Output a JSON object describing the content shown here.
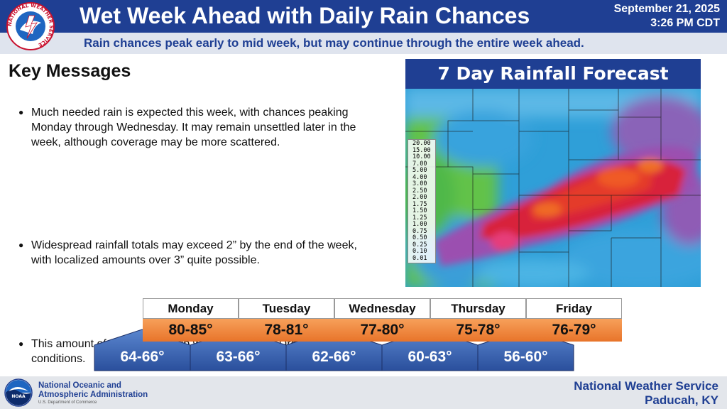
{
  "header": {
    "title": "Wet Week Ahead with Daily Rain Chances",
    "date": "September 21, 2025",
    "time": "3:26 PM CDT",
    "subtitle": "Rain chances peak early to mid week, but may continue through the entire week ahead.",
    "logo_text": "NATIONAL WEATHER SERVICE",
    "bg_color": "#1f3f93"
  },
  "key_messages": {
    "title": "Key Messages",
    "items": [
      "Much needed rain is expected this week, with chances peaking Monday through Wednesday. It may remain unsettled later in the week, although coverage may be more scattered.",
      "Widespread rainfall totals may exceed 2” by the end of the week, with localized amounts over 3” quite possible.",
      "This amount of rain should help with the ongoing Drought conditions."
    ]
  },
  "map": {
    "title": "7 Day Rainfall Forecast",
    "legend": [
      "20.00",
      "15.00",
      "10.00",
      "7.00",
      "5.00",
      "4.00",
      "3.00",
      "2.50",
      "2.00",
      "1.75",
      "1.50",
      "1.25",
      "1.00",
      "0.75",
      "0.50",
      "0.25",
      "0.10",
      "0.01"
    ]
  },
  "forecast": [
    {
      "day": "Monday",
      "high": "80-85°",
      "low": "64-66°"
    },
    {
      "day": "Tuesday",
      "high": "78-81°",
      "low": "63-66°"
    },
    {
      "day": "Wednesday",
      "high": "77-80°",
      "low": "62-66°"
    },
    {
      "day": "Thursday",
      "high": "75-78°",
      "low": "60-63°"
    },
    {
      "day": "Friday",
      "high": "76-79°",
      "low": "56-60°"
    }
  ],
  "footer": {
    "agency_line1": "National Oceanic and",
    "agency_line2": "Atmospheric Administration",
    "dept": "U.S. Department of Commerce",
    "office_line1": "National Weather Service",
    "office_line2": "Paducah, KY",
    "noaa_logo_text": "NOAA"
  },
  "colors": {
    "brand_blue": "#1f3f93",
    "high_orange": "#e8742a",
    "low_blue": "#3e67b5"
  }
}
